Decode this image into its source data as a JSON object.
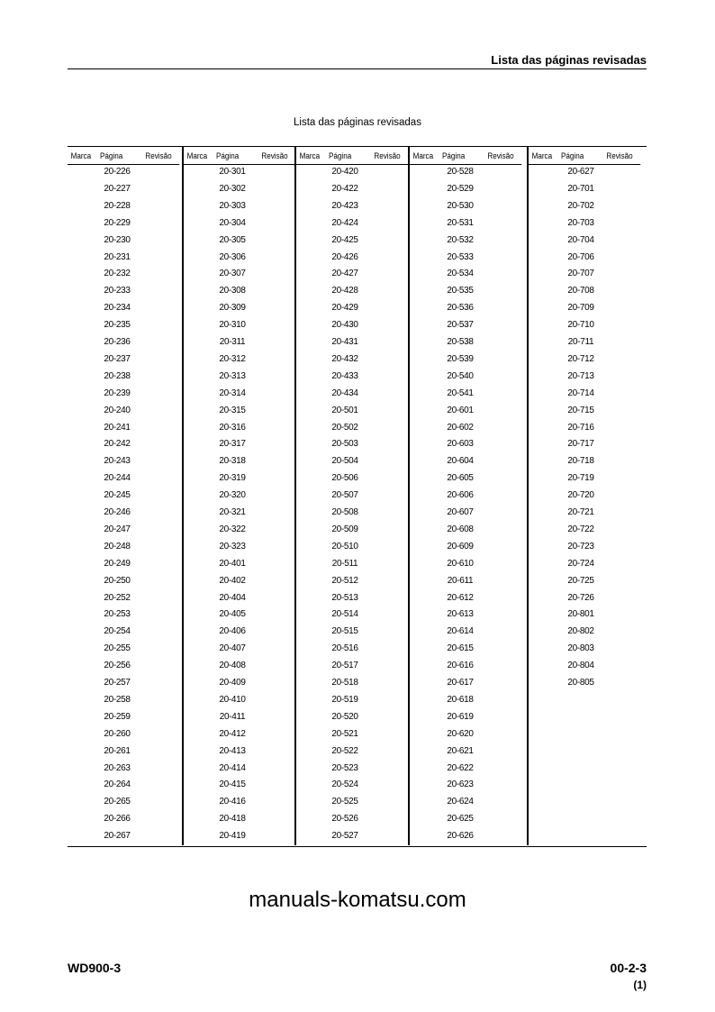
{
  "header": {
    "title": "Lista das páginas revisadas"
  },
  "table": {
    "title": "Lista das páginas revisadas",
    "column_headers": {
      "mark": "Marca",
      "page": "Página",
      "revision": "Revisão"
    },
    "columns": [
      [
        "20-226",
        "20-227",
        "20-228",
        "20-229",
        "20-230",
        "20-231",
        "20-232",
        "20-233",
        "20-234",
        "20-235",
        "20-236",
        "20-237",
        "20-238",
        "20-239",
        "20-240",
        "20-241",
        "20-242",
        "20-243",
        "20-244",
        "20-245",
        "20-246",
        "20-247",
        "20-248",
        "20-249",
        "20-250",
        "20-252",
        "20-253",
        "20-254",
        "20-255",
        "20-256",
        "20-257",
        "20-258",
        "20-259",
        "20-260",
        "20-261",
        "20-263",
        "20-264",
        "20-265",
        "20-266",
        "20-267"
      ],
      [
        "20-301",
        "20-302",
        "20-303",
        "20-304",
        "20-305",
        "20-306",
        "20-307",
        "20-308",
        "20-309",
        "20-310",
        "20-311",
        "20-312",
        "20-313",
        "20-314",
        "20-315",
        "20-316",
        "20-317",
        "20-318",
        "20-319",
        "20-320",
        "20-321",
        "20-322",
        "20-323",
        "20-401",
        "20-402",
        "20-404",
        "20-405",
        "20-406",
        "20-407",
        "20-408",
        "20-409",
        "20-410",
        "20-411",
        "20-412",
        "20-413",
        "20-414",
        "20-415",
        "20-416",
        "20-418",
        "20-419"
      ],
      [
        "20-420",
        "20-422",
        "20-423",
        "20-424",
        "20-425",
        "20-426",
        "20-427",
        "20-428",
        "20-429",
        "20-430",
        "20-431",
        "20-432",
        "20-433",
        "20-434",
        "20-501",
        "20-502",
        "20-503",
        "20-504",
        "20-506",
        "20-507",
        "20-508",
        "20-509",
        "20-510",
        "20-511",
        "20-512",
        "20-513",
        "20-514",
        "20-515",
        "20-516",
        "20-517",
        "20-518",
        "20-519",
        "20-520",
        "20-521",
        "20-522",
        "20-523",
        "20-524",
        "20-525",
        "20-526",
        "20-527"
      ],
      [
        "20-528",
        "20-529",
        "20-530",
        "20-531",
        "20-532",
        "20-533",
        "20-534",
        "20-535",
        "20-536",
        "20-537",
        "20-538",
        "20-539",
        "20-540",
        "20-541",
        "20-601",
        "20-602",
        "20-603",
        "20-604",
        "20-605",
        "20-606",
        "20-607",
        "20-608",
        "20-609",
        "20-610",
        "20-611",
        "20-612",
        "20-613",
        "20-614",
        "20-615",
        "20-616",
        "20-617",
        "20-618",
        "20-619",
        "20-620",
        "20-621",
        "20-622",
        "20-623",
        "20-624",
        "20-625",
        "20-626"
      ],
      [
        "20-627",
        "20-701",
        "20-702",
        "20-703",
        "20-704",
        "20-706",
        "20-707",
        "20-708",
        "20-709",
        "20-710",
        "20-711",
        "20-712",
        "20-713",
        "20-714",
        "20-715",
        "20-716",
        "20-717",
        "20-718",
        "20-719",
        "20-720",
        "20-721",
        "20-722",
        "20-723",
        "20-724",
        "20-725",
        "20-726",
        "20-801",
        "20-802",
        "20-803",
        "20-804",
        "20-805"
      ]
    ]
  },
  "watermark": "manuals-komatsu.com",
  "footer": {
    "model": "WD900-3",
    "page_number": "00-2-3",
    "revision": "(1)"
  }
}
